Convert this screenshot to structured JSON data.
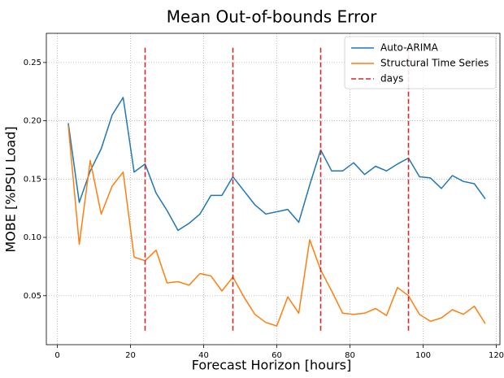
{
  "chart_data": {
    "type": "line",
    "title": "Mean Out-of-bounds Error",
    "xlabel": "Forecast Horizon [hours]",
    "ylabel": "MOBE [%PSU Load]",
    "xlim": [
      -3,
      121
    ],
    "ylim": [
      0.008,
      0.275
    ],
    "xticks": [
      0,
      20,
      40,
      60,
      80,
      100,
      120
    ],
    "yticks": [
      0.05,
      0.1,
      0.15,
      0.2,
      0.25
    ],
    "ytick_labels": [
      "0.05",
      "0.10",
      "0.15",
      "0.20",
      "0.25"
    ],
    "grid": true,
    "legend_position": "top-right",
    "x": [
      3,
      6,
      9,
      12,
      15,
      18,
      21,
      24,
      27,
      30,
      33,
      36,
      39,
      42,
      45,
      48,
      51,
      54,
      57,
      60,
      63,
      66,
      69,
      72,
      75,
      78,
      81,
      84,
      87,
      90,
      93,
      96,
      99,
      102,
      105,
      108,
      111,
      114,
      117
    ],
    "series": [
      {
        "name": "Auto-ARIMA",
        "color": "#1f77b4",
        "style": "solid",
        "values": [
          0.198,
          0.13,
          0.157,
          0.176,
          0.205,
          0.22,
          0.156,
          0.163,
          0.138,
          0.123,
          0.106,
          0.112,
          0.12,
          0.136,
          0.136,
          0.152,
          0.14,
          0.128,
          0.12,
          0.122,
          0.124,
          0.113,
          0.145,
          0.175,
          0.157,
          0.157,
          0.164,
          0.154,
          0.161,
          0.157,
          0.163,
          0.168,
          0.152,
          0.151,
          0.142,
          0.153,
          0.148,
          0.146,
          0.133
        ]
      },
      {
        "name": "Structural Time Series",
        "color": "#ff7f0e",
        "style": "solid",
        "values": [
          0.196,
          0.094,
          0.166,
          0.12,
          0.144,
          0.156,
          0.083,
          0.08,
          0.089,
          0.061,
          0.062,
          0.059,
          0.069,
          0.067,
          0.054,
          0.066,
          0.049,
          0.034,
          0.027,
          0.024,
          0.049,
          0.035,
          0.098,
          0.072,
          0.054,
          0.035,
          0.034,
          0.035,
          0.039,
          0.033,
          0.057,
          0.05,
          0.034,
          0.028,
          0.031,
          0.038,
          0.034,
          0.041,
          0.026
        ]
      }
    ],
    "vlines": {
      "name": "days",
      "color": "#d62728",
      "style": "dashed",
      "x": [
        24,
        48,
        72,
        96
      ],
      "ymin": 0.02,
      "ymax": 0.264
    }
  }
}
